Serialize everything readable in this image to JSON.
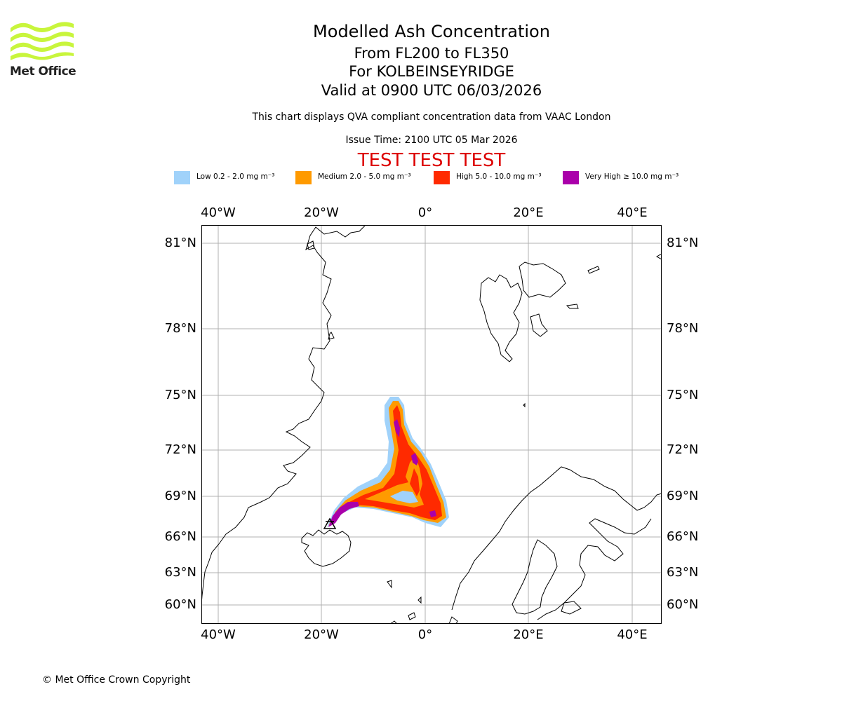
{
  "logo": {
    "text": "Met Office",
    "wave_color": "#c8f53c",
    "text_color": "#222222"
  },
  "header": {
    "title": "Modelled Ash Concentration",
    "level_range": "From FL200 to FL350",
    "volcano": "For KOLBEINSEYRIDGE",
    "validity": "Valid at 0900 UTC 06/03/2026",
    "compliance_note": "This chart displays QVA compliant concentration data from VAAC London",
    "issue_time": "Issue Time: 2100 UTC 05 Mar 2026",
    "test_banner": "TEST TEST TEST",
    "test_banner_color": "#dd0000"
  },
  "legend": [
    {
      "label": "Low 0.2 - 2.0 mg m⁻³",
      "color": "#a0d2fa"
    },
    {
      "label": "Medium 2.0 - 5.0 mg m⁻³",
      "color": "#ff9a00"
    },
    {
      "label": "High 5.0 - 10.0 mg m⁻³",
      "color": "#ff2a00"
    },
    {
      "label": "Very High ≥ 10.0 mg m⁻³",
      "color": "#aa00aa"
    }
  ],
  "axes": {
    "longitude_ticks": [
      "40°W",
      "20°W",
      "0°",
      "20°E",
      "40°E"
    ],
    "latitude_ticks": [
      "81°N",
      "78°N",
      "75°N",
      "72°N",
      "69°N",
      "66°N",
      "63°N",
      "60°N"
    ]
  },
  "map": {
    "gridlines": true,
    "coastline_color": "#000000",
    "grid_color": "#b0b0b0",
    "volcano_marker_icon": "volcano-triangle-icon"
  },
  "footer": {
    "copyright": "© Met Office Crown Copyright"
  }
}
